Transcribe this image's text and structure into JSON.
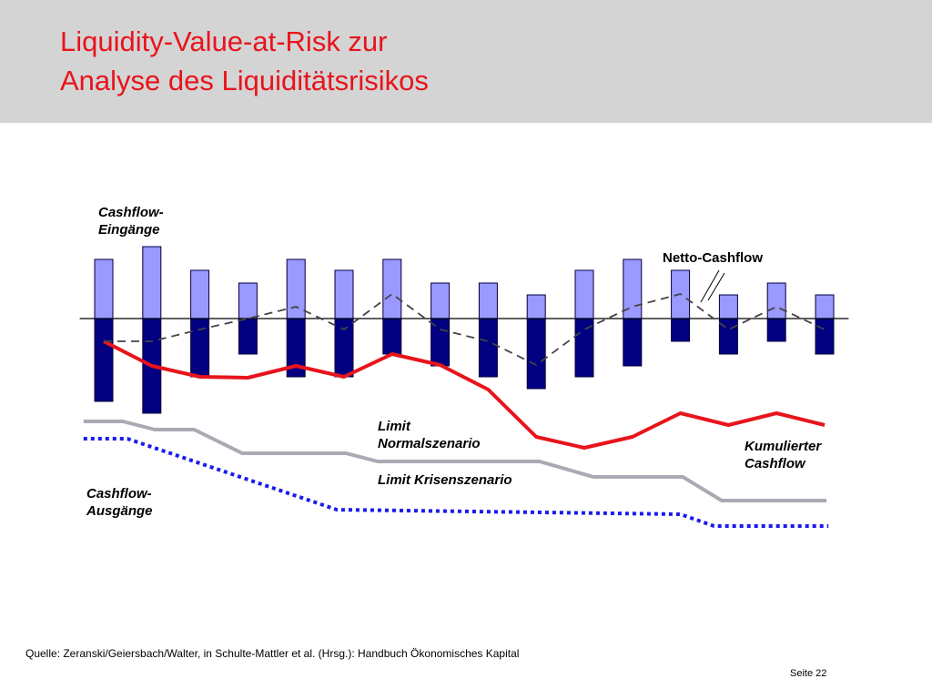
{
  "header": {
    "title": [
      "Liquidity-Value-at-Risk zur",
      "Analyse des Liquiditätsrisikos"
    ]
  },
  "chart_data": {
    "type": "bar",
    "categories": [
      null,
      null,
      null,
      null,
      null,
      null,
      null,
      null,
      null,
      null,
      null,
      null,
      null,
      null,
      null,
      null
    ],
    "xlim": [
      -0.5,
      15.5
    ],
    "ylim": [
      -24,
      9
    ],
    "series": [
      {
        "name": [
          "Cashflow-",
          "Eingänge"
        ],
        "type": "bar",
        "color": "#9999ff",
        "values": [
          6.5,
          7.9,
          5.3,
          3.9,
          6.5,
          5.3,
          6.5,
          3.9,
          3.9,
          2.6,
          5.3,
          6.5,
          5.3,
          2.6,
          3.9,
          2.6
        ]
      },
      {
        "name": [
          "Cashflow-",
          "Ausgänge"
        ],
        "type": "bar",
        "color": "#000080",
        "values": [
          -9.1,
          -10.4,
          -6.4,
          -3.9,
          -6.4,
          -6.4,
          -3.9,
          -5.2,
          -6.4,
          -7.7,
          -6.4,
          -5.2,
          -2.5,
          -3.9,
          -2.5,
          -3.9
        ]
      },
      {
        "name": [
          "Netto-Cashflow"
        ],
        "type": "line",
        "color": "#444444",
        "dash": "9,6",
        "values": [
          -2.5,
          -2.5,
          -1.2,
          0,
          1.3,
          -1.2,
          2.7,
          -1.2,
          -2.5,
          -5.1,
          -1.2,
          1.3,
          2.7,
          -1.2,
          1.3,
          -1.2
        ]
      },
      {
        "name": [
          "Kumulierter",
          "Cashflow"
        ],
        "type": "line",
        "color": "#e8141c",
        "values": [
          -2.5,
          -5.2,
          -6.4,
          -6.5,
          -5.2,
          -6.4,
          -3.9,
          -5.1,
          -7.8,
          -13,
          -14.2,
          -13,
          -10.4,
          -11.7,
          -10.4,
          -11.7
        ]
      },
      {
        "name": [
          "Limit",
          "Normalszenario"
        ],
        "type": "line",
        "color": "#aaaab4",
        "x": [
          -0.42,
          0.4,
          1.06,
          1.88,
          2.88,
          5.04,
          5.7,
          9.07,
          10.19,
          12.05,
          12.86,
          15.04
        ],
        "values": [
          -11.3,
          -11.3,
          -12.2,
          -12.2,
          -14.8,
          -14.8,
          -15.7,
          -15.7,
          -17.4,
          -17.4,
          -20,
          -20
        ]
      },
      {
        "name": [
          "Limit Krisenszenario"
        ],
        "type": "line",
        "color": "#1a1aee",
        "dash": "4,4",
        "x": [
          -0.42,
          0.49,
          4.85,
          12.0,
          12.7,
          15.08
        ],
        "values": [
          -13.2,
          -13.2,
          -21,
          -21.5,
          -22.8,
          -22.8
        ]
      }
    ]
  },
  "footer": {
    "source": "Quelle: Zeranski/Geiersbach/Walter, in Schulte-Mattler et al. (Hrsg.): Handbuch Ökonomisches Kapital",
    "page": "Seite 22"
  }
}
